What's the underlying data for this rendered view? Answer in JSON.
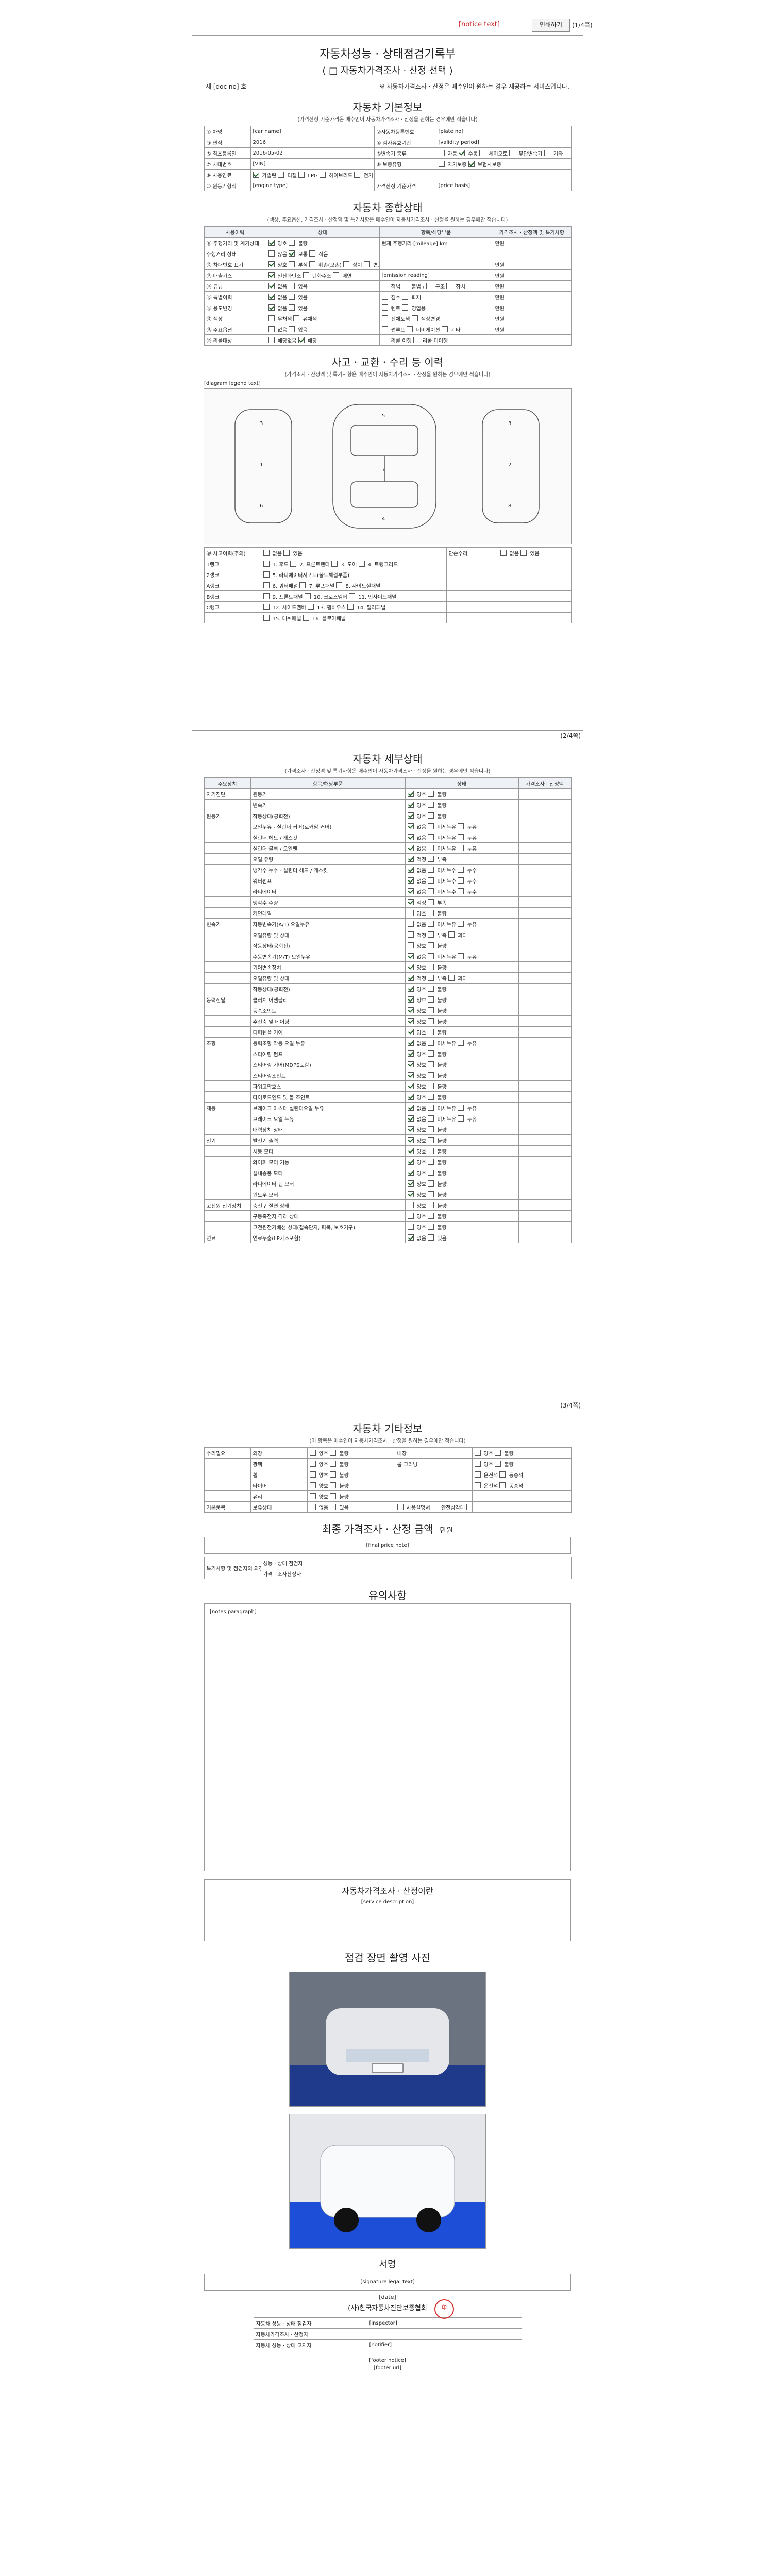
{
  "top": {
    "notice": "[notice text]",
    "print_label": "인쇄하기",
    "pages": "(1/4쪽)"
  },
  "page1": {
    "title": "자동차성능 · 상태점검기록부",
    "subtitle": "( □ 자동차가격조사 · 산정 선택 )",
    "doc_no_label": "제",
    "doc_no": "[doc no]",
    "doc_no_suffix": "호",
    "notice": "※ 자동차가격조사 · 산정은 매수인이 원하는 경우 제공하는 서비스입니다.",
    "basic_title": "자동차 기본정보",
    "basic_note": "(가격산정 기준가격은 매수인이 자동차가격조사 · 산정을 원하는 경우에만 적습니다)",
    "basic_rows": [
      [
        "① 차명",
        "[car name]",
        "②자동차등록번호",
        "[plate no]"
      ],
      [
        "③ 연식",
        "2016",
        "④ 검사유효기간",
        "[validity period]"
      ],
      [
        "⑤ 최초등록일",
        "2016-05-02",
        "⑥변속기 종류",
        "□ 자동  ☑ 수동  □ 세미오토  □ 무단변속기  □ 기타"
      ],
      [
        "⑦ 차대번호",
        "[VIN]",
        "⑧ 보증유형",
        "□ 자가보증  ☑ 보험사보증"
      ],
      [
        "⑨ 사용연료",
        "☑ 가솔린 □ 디젤 □ LPG □ 하이브리드 □ 전기 □ 수소전기 □ 기타",
        "",
        ""
      ],
      [
        "⑩ 원동기형식",
        "[engine type]",
        "가격산정 기준가격",
        "[price basis]"
      ]
    ],
    "overall_title": "자동차 종합상태",
    "overall_note": "(색상, 주요옵션, 가격조사 · 산정액 및 특기사항은 매수인이 자동차가격조사 · 산정을 원하는 경우에만 적습니다)",
    "overall_head": [
      "사용이력",
      "상태",
      "항목/해당부품",
      "가격조사 · 산정액 및 특기사항"
    ],
    "overall_rows": [
      [
        "⑪ 주행거리 및 계기상태",
        "☑ 양호 □ 불량",
        "현재 주행거리 [mileage] km",
        "만원"
      ],
      [
        "주행거리 상태",
        "□ 많음 ☑ 보통 □ 적음",
        "",
        ""
      ],
      [
        "⑫ 차대번호 표기",
        "☑ 양호 □ 부식 □ 훼손(오손) □ 상이 □ 변조(변타) □ 도말",
        "",
        "만원"
      ],
      [
        "⑬ 배출가스",
        "☑ 일산화탄소 □ 탄화수소 □ 매연",
        "[emission reading]",
        "만원"
      ],
      [
        "⑭ 튜닝",
        "☑ 없음 □ 있음",
        "□ 적법 □ 불법 / □ 구조 □ 장치",
        "만원"
      ],
      [
        "⑮ 특별이력",
        "☑ 없음 □ 있음",
        "□ 침수 □ 화재",
        "만원"
      ],
      [
        "⑯ 용도변경",
        "☑ 없음 □ 있음",
        "□ 렌트 □ 영업용",
        "만원"
      ],
      [
        "⑰ 색상",
        "□ 무채색 □ 유채색",
        "□ 전체도색 □ 색상변경",
        "만원"
      ],
      [
        "⑱ 주요옵션",
        "□ 없음 □ 있음",
        "□ 썬루프 □ 네비게이션 □ 기타",
        "만원"
      ],
      [
        "⑲ 리콜대상",
        "□ 해당없음 ☑ 해당",
        "□ 리콜 이행 □ 리콜 미이행",
        ""
      ]
    ],
    "accident_title": "사고 · 교환 · 수리 등 이력",
    "accident_note": "(가격조사 · 산정액 및 특기사항은 매수인이 자동차가격조사 · 산정을 원하는 경우에만 적습니다)",
    "diagram_caption": "[diagram legend text]",
    "accident_rows": [
      [
        "⑳ 사고이력(주의)",
        "□ 없음 □ 있음",
        "단순수리",
        "□ 없음 □ 있음"
      ],
      [
        "1랭크",
        "□ 1. 후드 □ 2. 프론트펜더 □ 3. 도어 □ 4. 트렁크리드",
        "",
        ""
      ],
      [
        "2랭크",
        "□ 5. 라디에이터서포트(볼트체결부품)",
        "",
        ""
      ],
      [
        "A랭크",
        "□ 6. 쿼터패널 □ 7. 루프패널 □ 8. 사이드실패널",
        "",
        ""
      ],
      [
        "B랭크",
        "□ 9. 프론트패널 □ 10. 크로스멤버 □ 11. 인사이드패널",
        "",
        ""
      ],
      [
        "C랭크",
        "□ 12. 사이드멤버 □ 13. 휠하우스 □ 14. 필러패널",
        "",
        ""
      ],
      [
        "",
        "□ 15. 대쉬패널 □ 16. 플로어패널",
        "",
        ""
      ]
    ]
  },
  "page2": {
    "pages": "(2/4쪽)",
    "title": "자동차 세부상태",
    "note": "(가격조사 · 산정액 및 특기사항은 매수인이 자동차가격조사 · 산정을 원하는 경우에만 적습니다)",
    "head": [
      "주요장치",
      "항목/해당부품",
      "상태",
      "가격조사 · 산정액"
    ],
    "rows": [
      [
        "자기진단",
        "원동기",
        "☑ 양호 □ 불량",
        ""
      ],
      [
        "",
        "변속기",
        "☑ 양호 □ 불량",
        ""
      ],
      [
        "원동기",
        "작동상태(공회전)",
        "☑ 양호 □ 불량",
        ""
      ],
      [
        "",
        "오일누유 - 실린더 커버(로커암 커버)",
        "☑ 없음 □ 미세누유 □ 누유",
        ""
      ],
      [
        "",
        "실린더 헤드 / 개스킷",
        "☑ 없음 □ 미세누유 □ 누유",
        ""
      ],
      [
        "",
        "실린더 블록 / 오일팬",
        "☑ 없음 □ 미세누유 □ 누유",
        ""
      ],
      [
        "",
        "오일 유량",
        "☑ 적정 □ 부족",
        ""
      ],
      [
        "",
        "냉각수 누수 - 실린더 헤드 / 개스킷",
        "☑ 없음 □ 미세누수 □ 누수",
        ""
      ],
      [
        "",
        "워터펌프",
        "☑ 없음 □ 미세누수 □ 누수",
        ""
      ],
      [
        "",
        "라디에이터",
        "☑ 없음 □ 미세누수 □ 누수",
        ""
      ],
      [
        "",
        "냉각수 수량",
        "☑ 적정 □ 부족",
        ""
      ],
      [
        "",
        "커먼레일",
        "□ 양호 □ 불량",
        ""
      ],
      [
        "변속기",
        "자동변속기(A/T) 오일누유",
        "□ 없음 □ 미세누유 □ 누유",
        ""
      ],
      [
        "",
        "오일유량 및 상태",
        "□ 적정 □ 부족 □ 과다",
        ""
      ],
      [
        "",
        "작동상태(공회전)",
        "□ 양호 □ 불량",
        ""
      ],
      [
        "",
        "수동변속기(M/T) 오일누유",
        "☑ 없음 □ 미세누유 □ 누유",
        ""
      ],
      [
        "",
        "기어변속장치",
        "☑ 양호 □ 불량",
        ""
      ],
      [
        "",
        "오일유량 및 상태",
        "☑ 적정 □ 부족 □ 과다",
        ""
      ],
      [
        "",
        "작동상태(공회전)",
        "☑ 양호 □ 불량",
        ""
      ],
      [
        "동력전달",
        "클러치 어셈블리",
        "☑ 양호 □ 불량",
        ""
      ],
      [
        "",
        "등속조인트",
        "☑ 양호 □ 불량",
        ""
      ],
      [
        "",
        "추진축 및 베어링",
        "☑ 양호 □ 불량",
        ""
      ],
      [
        "",
        "디퍼렌셜 기어",
        "☑ 양호 □ 불량",
        ""
      ],
      [
        "조향",
        "동력조향 작동 오일 누유",
        "☑ 없음 □ 미세누유 □ 누유",
        ""
      ],
      [
        "",
        "스티어링 펌프",
        "☑ 양호 □ 불량",
        ""
      ],
      [
        "",
        "스티어링 기어(MDPS포함)",
        "☑ 양호 □ 불량",
        ""
      ],
      [
        "",
        "스티어링조인트",
        "☑ 양호 □ 불량",
        ""
      ],
      [
        "",
        "파워고압호스",
        "☑ 양호 □ 불량",
        ""
      ],
      [
        "",
        "타이로드엔드 및 볼 조인트",
        "☑ 양호 □ 불량",
        ""
      ],
      [
        "제동",
        "브레이크 마스터 실린더오일 누유",
        "☑ 없음 □ 미세누유 □ 누유",
        ""
      ],
      [
        "",
        "브레이크 오일 누유",
        "☑ 없음 □ 미세누유 □ 누유",
        ""
      ],
      [
        "",
        "배력장치 상태",
        "☑ 양호 □ 불량",
        ""
      ],
      [
        "전기",
        "발전기 출력",
        "☑ 양호 □ 불량",
        ""
      ],
      [
        "",
        "시동 모터",
        "☑ 양호 □ 불량",
        ""
      ],
      [
        "",
        "와이퍼 모터 기능",
        "☑ 양호 □ 불량",
        ""
      ],
      [
        "",
        "실내송풍 모터",
        "☑ 양호 □ 불량",
        ""
      ],
      [
        "",
        "라디에이터 팬 모터",
        "☑ 양호 □ 불량",
        ""
      ],
      [
        "",
        "윈도우 모터",
        "☑ 양호 □ 불량",
        ""
      ],
      [
        "고전원 전기장치",
        "충전구 절연 상태",
        "□ 양호 □ 불량",
        ""
      ],
      [
        "",
        "구동축전지 격리 상태",
        "□ 양호 □ 불량",
        ""
      ],
      [
        "",
        "고전원전기배선 상태(접속단자, 피복, 보호기구)",
        "□ 양호 □ 불량",
        ""
      ],
      [
        "연료",
        "연료누출(LP가스포함)",
        "☑ 없음 □ 있음",
        ""
      ]
    ]
  },
  "page3": {
    "pages": "(3/4쪽)",
    "other_title": "자동차 기타정보",
    "other_note": "(미 항목은 매수인이 자동차가격조사 · 산정을 원하는 경우에만 적습니다)",
    "other_rows": [
      [
        "수리필요",
        "외장",
        "□ 양호 □ 불량",
        "내장",
        "□ 양호 □ 불량"
      ],
      [
        "",
        "광택",
        "□ 양호 □ 불량",
        "룸 크리닝",
        "□ 양호 □ 불량"
      ],
      [
        "",
        "휠",
        "□ 양호 □ 불량",
        "",
        "□ 운전석 □ 동승석"
      ],
      [
        "",
        "타이어",
        "□ 양호 □ 불량",
        "",
        "□ 운전석 □ 동승석"
      ],
      [
        "",
        "유리",
        "□ 양호 □ 불량",
        "",
        ""
      ],
      [
        "기본품목",
        "보유상태",
        "□ 없음 □ 있음",
        "□ 사용설명서 □ 안전삼각대 □ 잭 □ 스패너",
        ""
      ]
    ],
    "final_title": "최종 가격조사 · 산정 금액",
    "final_unit": "만원",
    "final_note": "[final price note]",
    "special_label": "특기사항 및 점검자의 의견",
    "special_rows": [
      "성능 · 상태 점검자",
      "가격 · 조사산정자"
    ],
    "caution_title": "유의사항",
    "caution_text": "[notes paragraph]",
    "service_title": "자동차가격조사 · 산정이란",
    "service_text": "[service description]",
    "photo_title": "점검 장면 촬영 사진",
    "sign_title": "서명",
    "sign_note": "[signature legal text]",
    "sign_date": "[date]",
    "sign_org": "(사)한국자동차진단보증협회",
    "sign_rows": [
      [
        "자동차 성능 · 상태 점검자",
        "[inspector]"
      ],
      [
        "자동차가격조사 · 산정자",
        ""
      ],
      [
        "자동차 성능 · 상태 고지자",
        "[notifier]"
      ]
    ],
    "footer_a": "[footer notice]",
    "footer_b": "[footer url]"
  },
  "colors": {
    "red": "#c62828",
    "green_check": "#1b5e20",
    "header_bg": "#eef2f7"
  },
  "icons": {
    "check": "check-icon",
    "car_top": "car-diagram-icon"
  }
}
